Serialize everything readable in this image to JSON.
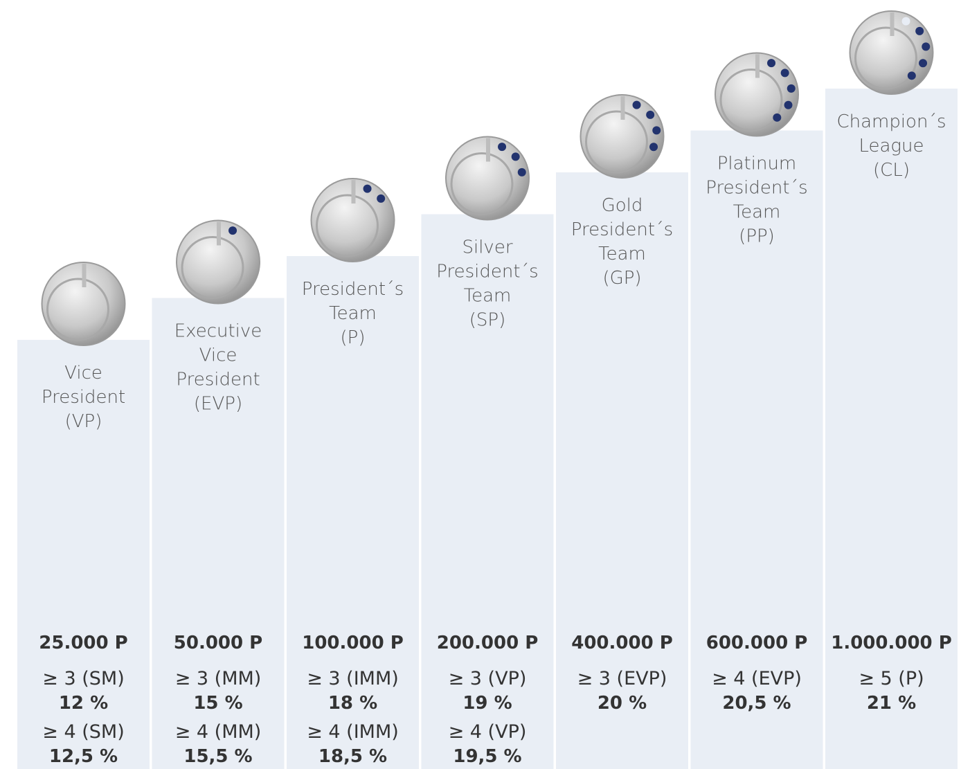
{
  "levels": [
    {
      "name": [
        "Vice",
        "President",
        "(VP)"
      ],
      "points": "25.000 P",
      "requirements": [
        {
          "condition": "≥ 3 (SM)",
          "percent": "12 %"
        },
        {
          "condition": "≥ 4 (SM)",
          "percent": "12,5 %"
        }
      ]
    },
    {
      "name": [
        "Executive",
        "Vice",
        "President",
        "(EVP)"
      ],
      "points": "50.000 P",
      "requirements": [
        {
          "condition": "≥ 3 (MM)",
          "percent": "15 %"
        },
        {
          "condition": "≥ 4 (MM)",
          "percent": "15,5 %"
        }
      ]
    },
    {
      "name": [
        "President´s",
        "Team",
        "(P)"
      ],
      "points": "100.000 P",
      "requirements": [
        {
          "condition": "≥ 3 (IMM)",
          "percent": "18 %"
        },
        {
          "condition": "≥ 4 (IMM)",
          "percent": "18,5 %"
        }
      ]
    },
    {
      "name": [
        "Silver",
        "President´s",
        "Team",
        "(SP)"
      ],
      "points": "200.000 P",
      "requirements": [
        {
          "condition": "≥ 3 (VP)",
          "percent": "19 %"
        },
        {
          "condition": "≥ 4 (VP)",
          "percent": "19,5 %"
        }
      ]
    },
    {
      "name": [
        "Gold",
        "President´s",
        "Team",
        "(GP)"
      ],
      "points": "400.000 P",
      "requirements": [
        {
          "condition": "≥ 3 (EVP)",
          "percent": "20 %"
        }
      ]
    },
    {
      "name": [
        "Platinum",
        "President´s",
        "Team",
        "(PP)"
      ],
      "points": "600.000 P",
      "requirements": [
        {
          "condition": "≥ 4 (EVP)",
          "percent": "20,5 %"
        }
      ]
    },
    {
      "name": [
        "Champion´s",
        "League",
        "(CL)"
      ],
      "points": "1.000.000 P",
      "requirements": [
        {
          "condition": "≥ 5 (P)",
          "percent": "21 %"
        }
      ]
    }
  ]
}
